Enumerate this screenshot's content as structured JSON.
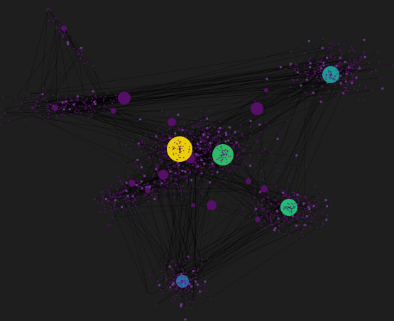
{
  "figure": {
    "background": "#1e1e1e",
    "edge_color": "#000000",
    "node_default_color": "#5b0f6e",
    "node_light_color": "#7a3c9a"
  },
  "chart_data": {
    "type": "network",
    "clusters": [
      {
        "id": "upper-left-tail",
        "hub_colors": [],
        "density": "sparse"
      },
      {
        "id": "left-arm",
        "hub_colors": [
          "#5b0f6e"
        ],
        "density": "medium"
      },
      {
        "id": "upper-right",
        "hub_colors": [
          "#1aa39a"
        ],
        "density": "dense"
      },
      {
        "id": "center",
        "hub_colors": [
          "#f5d90a",
          "#2fc36a"
        ],
        "density": "very-dense"
      },
      {
        "id": "lower-left-arm",
        "hub_colors": [
          "#5b0f6e"
        ],
        "density": "medium"
      },
      {
        "id": "right-lower",
        "hub_colors": [
          "#22c77a"
        ],
        "density": "dense"
      },
      {
        "id": "bottom",
        "hub_colors": [
          "#2e6fb0"
        ],
        "density": "medium"
      }
    ],
    "highlighted_hubs": [
      {
        "cluster": "center",
        "color": "#f5d90a",
        "relative_size": "largest"
      },
      {
        "cluster": "center",
        "color": "#2fc36a",
        "relative_size": "large"
      },
      {
        "cluster": "upper-right",
        "color": "#1aa39a",
        "relative_size": "medium"
      },
      {
        "cluster": "right-lower",
        "color": "#22c77a",
        "relative_size": "medium"
      },
      {
        "cluster": "bottom",
        "color": "#2e6fb0",
        "relative_size": "small"
      }
    ]
  }
}
